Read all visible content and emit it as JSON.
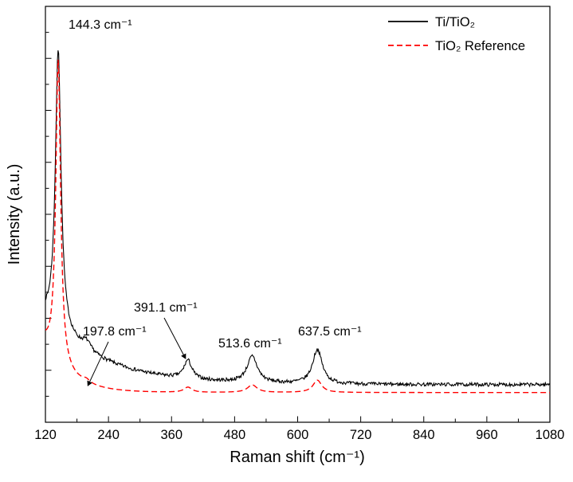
{
  "figure": {
    "background": "#ffffff"
  },
  "chart_data": {
    "type": "line",
    "title": "",
    "xlabel": "Raman shift (cm⁻¹)",
    "ylabel": "Intensity (a.u.)",
    "xlim": [
      120,
      1080
    ],
    "ylim": [
      0,
      1.05
    ],
    "x_ticks": [
      120,
      240,
      360,
      480,
      600,
      720,
      840,
      960,
      1080
    ],
    "x_minor_step": 60,
    "grid": false,
    "legend_position": "top-right-inside",
    "legend": [
      {
        "label": "Ti/TiO₂",
        "color": "#000000",
        "style": "solid"
      },
      {
        "label": "TiO₂ Reference",
        "color": "#ff0000",
        "style": "dashed"
      }
    ],
    "annotations": [
      {
        "text": "144.3 cm⁻¹",
        "x": 144.3,
        "arrow": false
      },
      {
        "text": "197.8 cm⁻¹",
        "x": 197.8,
        "arrow": true
      },
      {
        "text": "391.1 cm⁻¹",
        "x": 391.1,
        "arrow": true
      },
      {
        "text": "513.6 cm⁻¹",
        "x": 513.6,
        "arrow": false
      },
      {
        "text": "637.5 cm⁻¹",
        "x": 637.5,
        "arrow": false
      }
    ],
    "series": [
      {
        "name": "Ti/TiO₂",
        "color": "#000000",
        "style": "solid",
        "noise": 0.0045,
        "background": {
          "base": 0.095,
          "decay_amp": 0.17,
          "decay_tau": 110
        },
        "peaks": [
          {
            "center": 144.3,
            "height": 0.71,
            "hwhm": 6.5
          },
          {
            "center": 197.8,
            "height": 0.022,
            "hwhm": 10
          },
          {
            "center": 391.1,
            "height": 0.047,
            "hwhm": 9
          },
          {
            "center": 513.6,
            "height": 0.066,
            "hwhm": 12
          },
          {
            "center": 637.5,
            "height": 0.087,
            "hwhm": 11
          }
        ]
      },
      {
        "name": "TiO₂ Reference",
        "color": "#ff0000",
        "style": "dashed",
        "noise": 0,
        "background": {
          "base": 0.075,
          "decay_amp": 0.12,
          "decay_tau": 45
        },
        "peaks": [
          {
            "center": 144.3,
            "height": 0.772,
            "hwhm": 5.5
          },
          {
            "center": 197.8,
            "height": 0.008,
            "hwhm": 8
          },
          {
            "center": 391.1,
            "height": 0.013,
            "hwhm": 9
          },
          {
            "center": 513.6,
            "height": 0.019,
            "hwhm": 11
          },
          {
            "center": 637.5,
            "height": 0.031,
            "hwhm": 10
          }
        ]
      }
    ]
  }
}
